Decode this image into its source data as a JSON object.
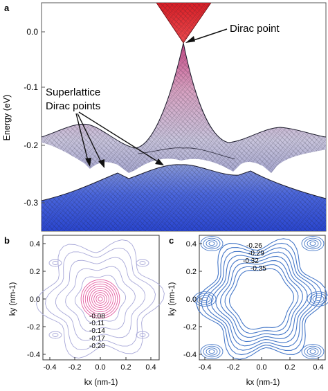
{
  "figure": {
    "colors": {
      "upper_cone": "#e8232a",
      "valence_top": "#c85590",
      "valence_mid": "#a8a2c8",
      "lower_band": "#3a58d8",
      "mesh": "#1a1a2a",
      "contour_b": "#a8a8d8",
      "contour_b_center": "#e45aa0",
      "contour_c": "#4678c8"
    }
  },
  "panel_a": {
    "letter": "a",
    "ylabel": "Energy (eV)",
    "ticks": [
      "0.0",
      "-0.1",
      "-0.2",
      "-0.3"
    ],
    "annotations": {
      "dirac_point": "Dirac point",
      "superlattice_line1": "Superlattice",
      "superlattice_line2": "Dirac points"
    }
  },
  "panel_b": {
    "letter": "b",
    "xlabel": "kx (nm-1)",
    "ylabel": "ky (nm-1)",
    "xticks": [
      "-0.4",
      "-0.2",
      "0.0",
      "0.2",
      "0.4"
    ],
    "yticks": [
      "0.4",
      "0.2",
      "0.0",
      "-0.2",
      "-0.4"
    ],
    "contour_labels": [
      "-0.08",
      "-0.11",
      "-0.14",
      "-0.17",
      "-0.20"
    ]
  },
  "panel_c": {
    "letter": "c",
    "xlabel": "kx (nm-1)",
    "ylabel": "ky (nm-1)",
    "xticks": [
      "-0.4",
      "-0.2",
      "0.0",
      "0.2",
      "0.4"
    ],
    "yticks": [
      "0.4",
      "0.2",
      "0.0",
      "-0.2",
      "-0.4"
    ],
    "contour_labels": [
      "-0.26",
      "-0.29",
      "-0.32",
      "-0.35"
    ]
  }
}
